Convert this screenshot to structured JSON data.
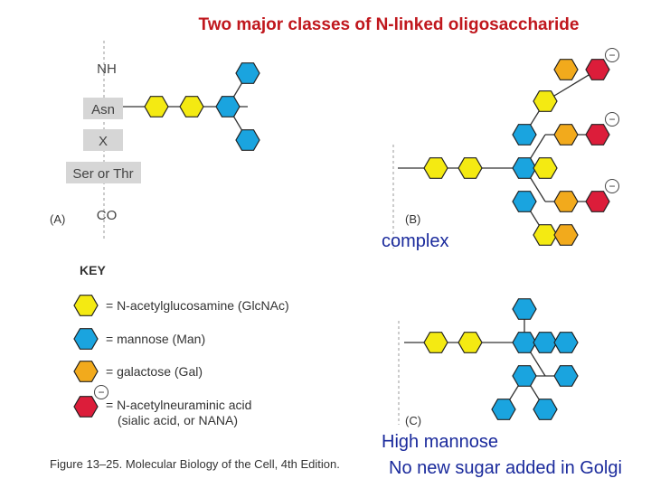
{
  "title": "Two major classes of N-linked oligosaccharide",
  "panel_a": {
    "label": "(A)",
    "chain_labels": [
      "NH",
      "Asn",
      "X",
      "Ser or Thr",
      "CO"
    ]
  },
  "panel_b": {
    "label": "(B)",
    "annotation": "complex"
  },
  "panel_c": {
    "label": "(C)",
    "annotation": "High mannose",
    "note": "No new sugar added in Golgi"
  },
  "key": {
    "heading": "KEY",
    "items": [
      {
        "color": "yellow",
        "label": "= N-acetylglucosamine (GlcNAc)"
      },
      {
        "color": "blue",
        "label": "= mannose (Man)"
      },
      {
        "color": "orange",
        "label": "= galactose (Gal)"
      },
      {
        "color": "red",
        "label": "= N-acetylneuraminic acid",
        "label2": "(sialic acid, or NANA)"
      }
    ]
  },
  "minus_sign": "−",
  "caption": "Figure 13–25. Molecular Biology of the Cell, 4th Edition.",
  "colors": {
    "glcnac": "#f4ea12",
    "mannose": "#1aa4df",
    "galactose": "#f2aa1c",
    "nana": "#dc1d3a",
    "title": "#c0171d",
    "annotation": "#1a2a9c"
  }
}
